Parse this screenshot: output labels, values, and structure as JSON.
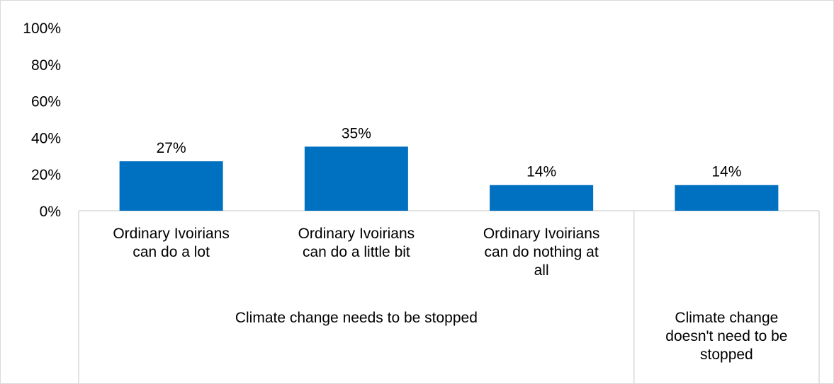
{
  "chart_data": {
    "type": "bar",
    "categories": [
      {
        "label_lines": [
          "Ordinary Ivoirians",
          "can do a lot"
        ],
        "group": 0
      },
      {
        "label_lines": [
          "Ordinary Ivoirians",
          "can do a little bit"
        ],
        "group": 0
      },
      {
        "label_lines": [
          "Ordinary Ivoirians",
          "can do nothing at",
          "all"
        ],
        "group": 0
      },
      {
        "label_lines": [],
        "group": 1
      }
    ],
    "groups": [
      {
        "label_lines": [
          "Climate change needs to be stopped"
        ]
      },
      {
        "label_lines": [
          "Climate change",
          "doesn't need to be",
          "stopped"
        ]
      }
    ],
    "values": [
      27,
      35,
      14,
      14
    ],
    "data_labels": [
      "27%",
      "35%",
      "14%",
      "14%"
    ],
    "y_ticks": [
      "0%",
      "20%",
      "40%",
      "60%",
      "80%",
      "100%"
    ],
    "ylim": [
      0,
      100
    ],
    "title": "",
    "xlabel": "",
    "ylabel": "",
    "grid": false,
    "legend": "none",
    "bar_color": "#0070C0",
    "axis_color": "#d9d9d9"
  }
}
